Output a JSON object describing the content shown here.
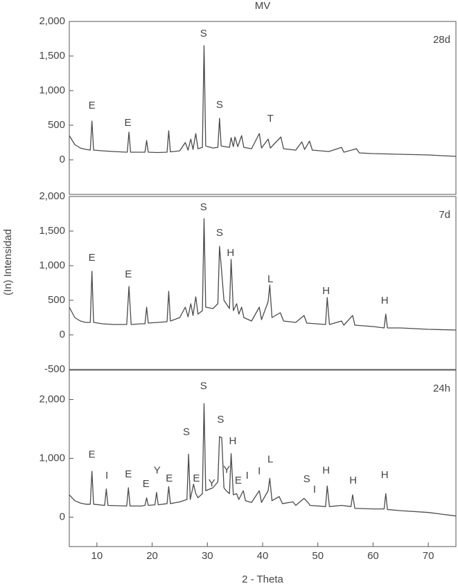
{
  "chart_data": [
    {
      "type": "line",
      "title": "MV",
      "xlim": [
        5,
        75
      ],
      "ylim": [
        -500,
        2000
      ],
      "yticks": [
        0,
        500,
        {
          "value": 1000,
          "label": "1,000"
        },
        {
          "value": 1500,
          "label": "1,500"
        },
        {
          "value": 2000,
          "label": "2,000"
        }
      ],
      "x": [
        5,
        6,
        7,
        8,
        8.8,
        9.1,
        9.4,
        11,
        13,
        15.5,
        15.8,
        16.1,
        18,
        18.7,
        19,
        19.3,
        21,
        22.7,
        23,
        23.3,
        25,
        26,
        26.5,
        27,
        27.4,
        27.9,
        28.3,
        29.1,
        29.4,
        29.7,
        31,
        31.9,
        32.2,
        32.5,
        34,
        34.3,
        34.7,
        35,
        35.5,
        36.2,
        36.6,
        38,
        39.4,
        39.8,
        41,
        41.4,
        43.3,
        43.8,
        46,
        47.1,
        47.6,
        48.5,
        49,
        52,
        54.3,
        54.7,
        57,
        57.5,
        60,
        65,
        70,
        75
      ],
      "series": [
        {
          "name": "28d",
          "color": "#4a4a4a",
          "values": [
            350,
            220,
            170,
            150,
            140,
            560,
            140,
            130,
            120,
            110,
            400,
            110,
            110,
            110,
            280,
            110,
            105,
            110,
            420,
            115,
            130,
            250,
            140,
            300,
            150,
            380,
            160,
            180,
            1650,
            200,
            170,
            180,
            600,
            200,
            180,
            320,
            190,
            330,
            190,
            350,
            180,
            160,
            380,
            170,
            300,
            170,
            330,
            160,
            140,
            260,
            150,
            270,
            140,
            120,
            180,
            110,
            160,
            100,
            90,
            80,
            70,
            50
          ]
        }
      ],
      "annotations": [
        {
          "text": "E",
          "x": 9.1,
          "y": 780
        },
        {
          "text": "E",
          "x": 15.6,
          "y": 530
        },
        {
          "text": "S",
          "x": 29.3,
          "y": 1820
        },
        {
          "text": "S",
          "x": 32.2,
          "y": 790
        },
        {
          "text": "T",
          "x": 41.4,
          "y": 590
        }
      ]
    },
    {
      "type": "line",
      "ylabel": "(In) Intensidad",
      "xlim": [
        5,
        75
      ],
      "ylim": [
        -500,
        2000
      ],
      "yticks": [
        -500,
        0,
        500,
        {
          "value": 1000,
          "label": "1,000"
        },
        {
          "value": 1500,
          "label": "1,500"
        },
        {
          "value": 2000,
          "label": "2,000"
        }
      ],
      "x": [
        5,
        6,
        7,
        8,
        8.8,
        9.1,
        9.4,
        11,
        13,
        15.4,
        15.8,
        16.2,
        18,
        18.7,
        19,
        19.3,
        21,
        22.7,
        23,
        23.3,
        25,
        26,
        26.5,
        27,
        27.4,
        27.9,
        28.3,
        29.1,
        29.4,
        29.7,
        31,
        31.9,
        32.2,
        32.6,
        33,
        34,
        34.3,
        34.7,
        35.3,
        35.7,
        36.2,
        36.6,
        38,
        39.4,
        39.8,
        41,
        41.3,
        41.7,
        43.2,
        43.8,
        46,
        47.5,
        48,
        51.4,
        51.7,
        52.1,
        54.3,
        54.7,
        56.3,
        56.7,
        60,
        62,
        62.3,
        62.6,
        65,
        70,
        75
      ],
      "series": [
        {
          "name": "7d",
          "color": "#4a4a4a",
          "values": [
            400,
            250,
            200,
            180,
            180,
            920,
            180,
            160,
            150,
            150,
            700,
            150,
            160,
            160,
            400,
            170,
            180,
            190,
            630,
            200,
            250,
            400,
            260,
            450,
            280,
            550,
            300,
            350,
            1680,
            400,
            380,
            450,
            1280,
            900,
            500,
            380,
            1090,
            350,
            450,
            300,
            400,
            250,
            200,
            400,
            220,
            480,
            720,
            250,
            320,
            200,
            180,
            280,
            170,
            150,
            540,
            150,
            200,
            140,
            280,
            140,
            120,
            100,
            300,
            100,
            100,
            80,
            70
          ]
        }
      ],
      "annotations": [
        {
          "text": "E",
          "x": 9.1,
          "y": 1110
        },
        {
          "text": "E",
          "x": 15.7,
          "y": 870
        },
        {
          "text": "S",
          "x": 29.3,
          "y": 1840
        },
        {
          "text": "S",
          "x": 32.2,
          "y": 1470
        },
        {
          "text": "H",
          "x": 34.2,
          "y": 1180
        },
        {
          "text": "L",
          "x": 41.4,
          "y": 800
        },
        {
          "text": "H",
          "x": 51.5,
          "y": 630
        },
        {
          "text": "H",
          "x": 62.1,
          "y": 490
        }
      ]
    },
    {
      "type": "line",
      "xlabel": "2 - Theta",
      "xlim": [
        5,
        75
      ],
      "ylim": [
        -500,
        2500
      ],
      "xticks": [
        10,
        20,
        30,
        40,
        50,
        60,
        70
      ],
      "yticks": [
        0,
        {
          "value": 1000,
          "label": "1,000"
        },
        {
          "value": 2000,
          "label": "2,000"
        }
      ],
      "x": [
        5,
        6,
        7,
        8,
        8.8,
        9.1,
        9.4,
        11.4,
        11.7,
        12,
        15.4,
        15.7,
        16,
        18,
        18.7,
        19,
        19.3,
        20.5,
        20.8,
        21.1,
        22.7,
        23,
        23.3,
        25,
        26.3,
        26.6,
        26.9,
        27.5,
        27.9,
        28.3,
        29.1,
        29.4,
        29.7,
        31,
        31.9,
        32.2,
        32.6,
        33,
        33.4,
        34,
        34.3,
        34.7,
        35.3,
        35.7,
        36.5,
        36.9,
        38,
        39.4,
        39.8,
        41,
        41.3,
        41.7,
        43,
        43.6,
        45.5,
        46,
        47.5,
        48.2,
        48.6,
        51.4,
        51.7,
        52.1,
        54.3,
        56,
        56.3,
        56.7,
        60,
        62,
        62.3,
        62.6,
        65,
        70,
        75
      ],
      "series": [
        {
          "name": "24h",
          "color": "#4a4a4a",
          "values": [
            380,
            280,
            240,
            220,
            220,
            780,
            220,
            200,
            480,
            200,
            190,
            500,
            190,
            190,
            200,
            330,
            200,
            210,
            420,
            210,
            230,
            520,
            230,
            260,
            300,
            1070,
            300,
            560,
            400,
            330,
            400,
            1930,
            450,
            500,
            600,
            1370,
            1350,
            500,
            450,
            400,
            1080,
            380,
            400,
            300,
            450,
            280,
            250,
            450,
            250,
            450,
            660,
            280,
            350,
            230,
            260,
            200,
            320,
            250,
            200,
            180,
            530,
            180,
            200,
            180,
            380,
            150,
            140,
            140,
            400,
            130,
            110,
            80,
            20
          ]
        }
      ],
      "annotations": [
        {
          "text": "S",
          "x": 29.3,
          "y": 2226
        },
        {
          "text": "S",
          "x": 26.2,
          "y": 1440
        },
        {
          "text": "S",
          "x": 32.4,
          "y": 1655
        },
        {
          "text": "H",
          "x": 34.6,
          "y": 1286
        },
        {
          "text": "E",
          "x": 9.1,
          "y": 1060
        },
        {
          "text": "I",
          "x": 11.8,
          "y": 702
        },
        {
          "text": "E",
          "x": 15.7,
          "y": 726
        },
        {
          "text": "E",
          "x": 18.9,
          "y": 560
        },
        {
          "text": "Y",
          "x": 20.9,
          "y": 786
        },
        {
          "text": "E",
          "x": 23.1,
          "y": 655
        },
        {
          "text": "E",
          "x": 28,
          "y": 655
        },
        {
          "text": "Y",
          "x": 30.8,
          "y": 571
        },
        {
          "text": "Y",
          "x": 33.5,
          "y": 798
        },
        {
          "text": "E",
          "x": 35.6,
          "y": 619
        },
        {
          "text": "I",
          "x": 37.2,
          "y": 702
        },
        {
          "text": "I",
          "x": 39.4,
          "y": 774
        },
        {
          "text": "L",
          "x": 41.4,
          "y": 976
        },
        {
          "text": "S",
          "x": 48,
          "y": 643
        },
        {
          "text": "I",
          "x": 49.4,
          "y": 464
        },
        {
          "text": "H",
          "x": 51.5,
          "y": 786
        },
        {
          "text": "H",
          "x": 56.4,
          "y": 619
        },
        {
          "text": "H",
          "x": 62.1,
          "y": 714
        }
      ]
    }
  ]
}
